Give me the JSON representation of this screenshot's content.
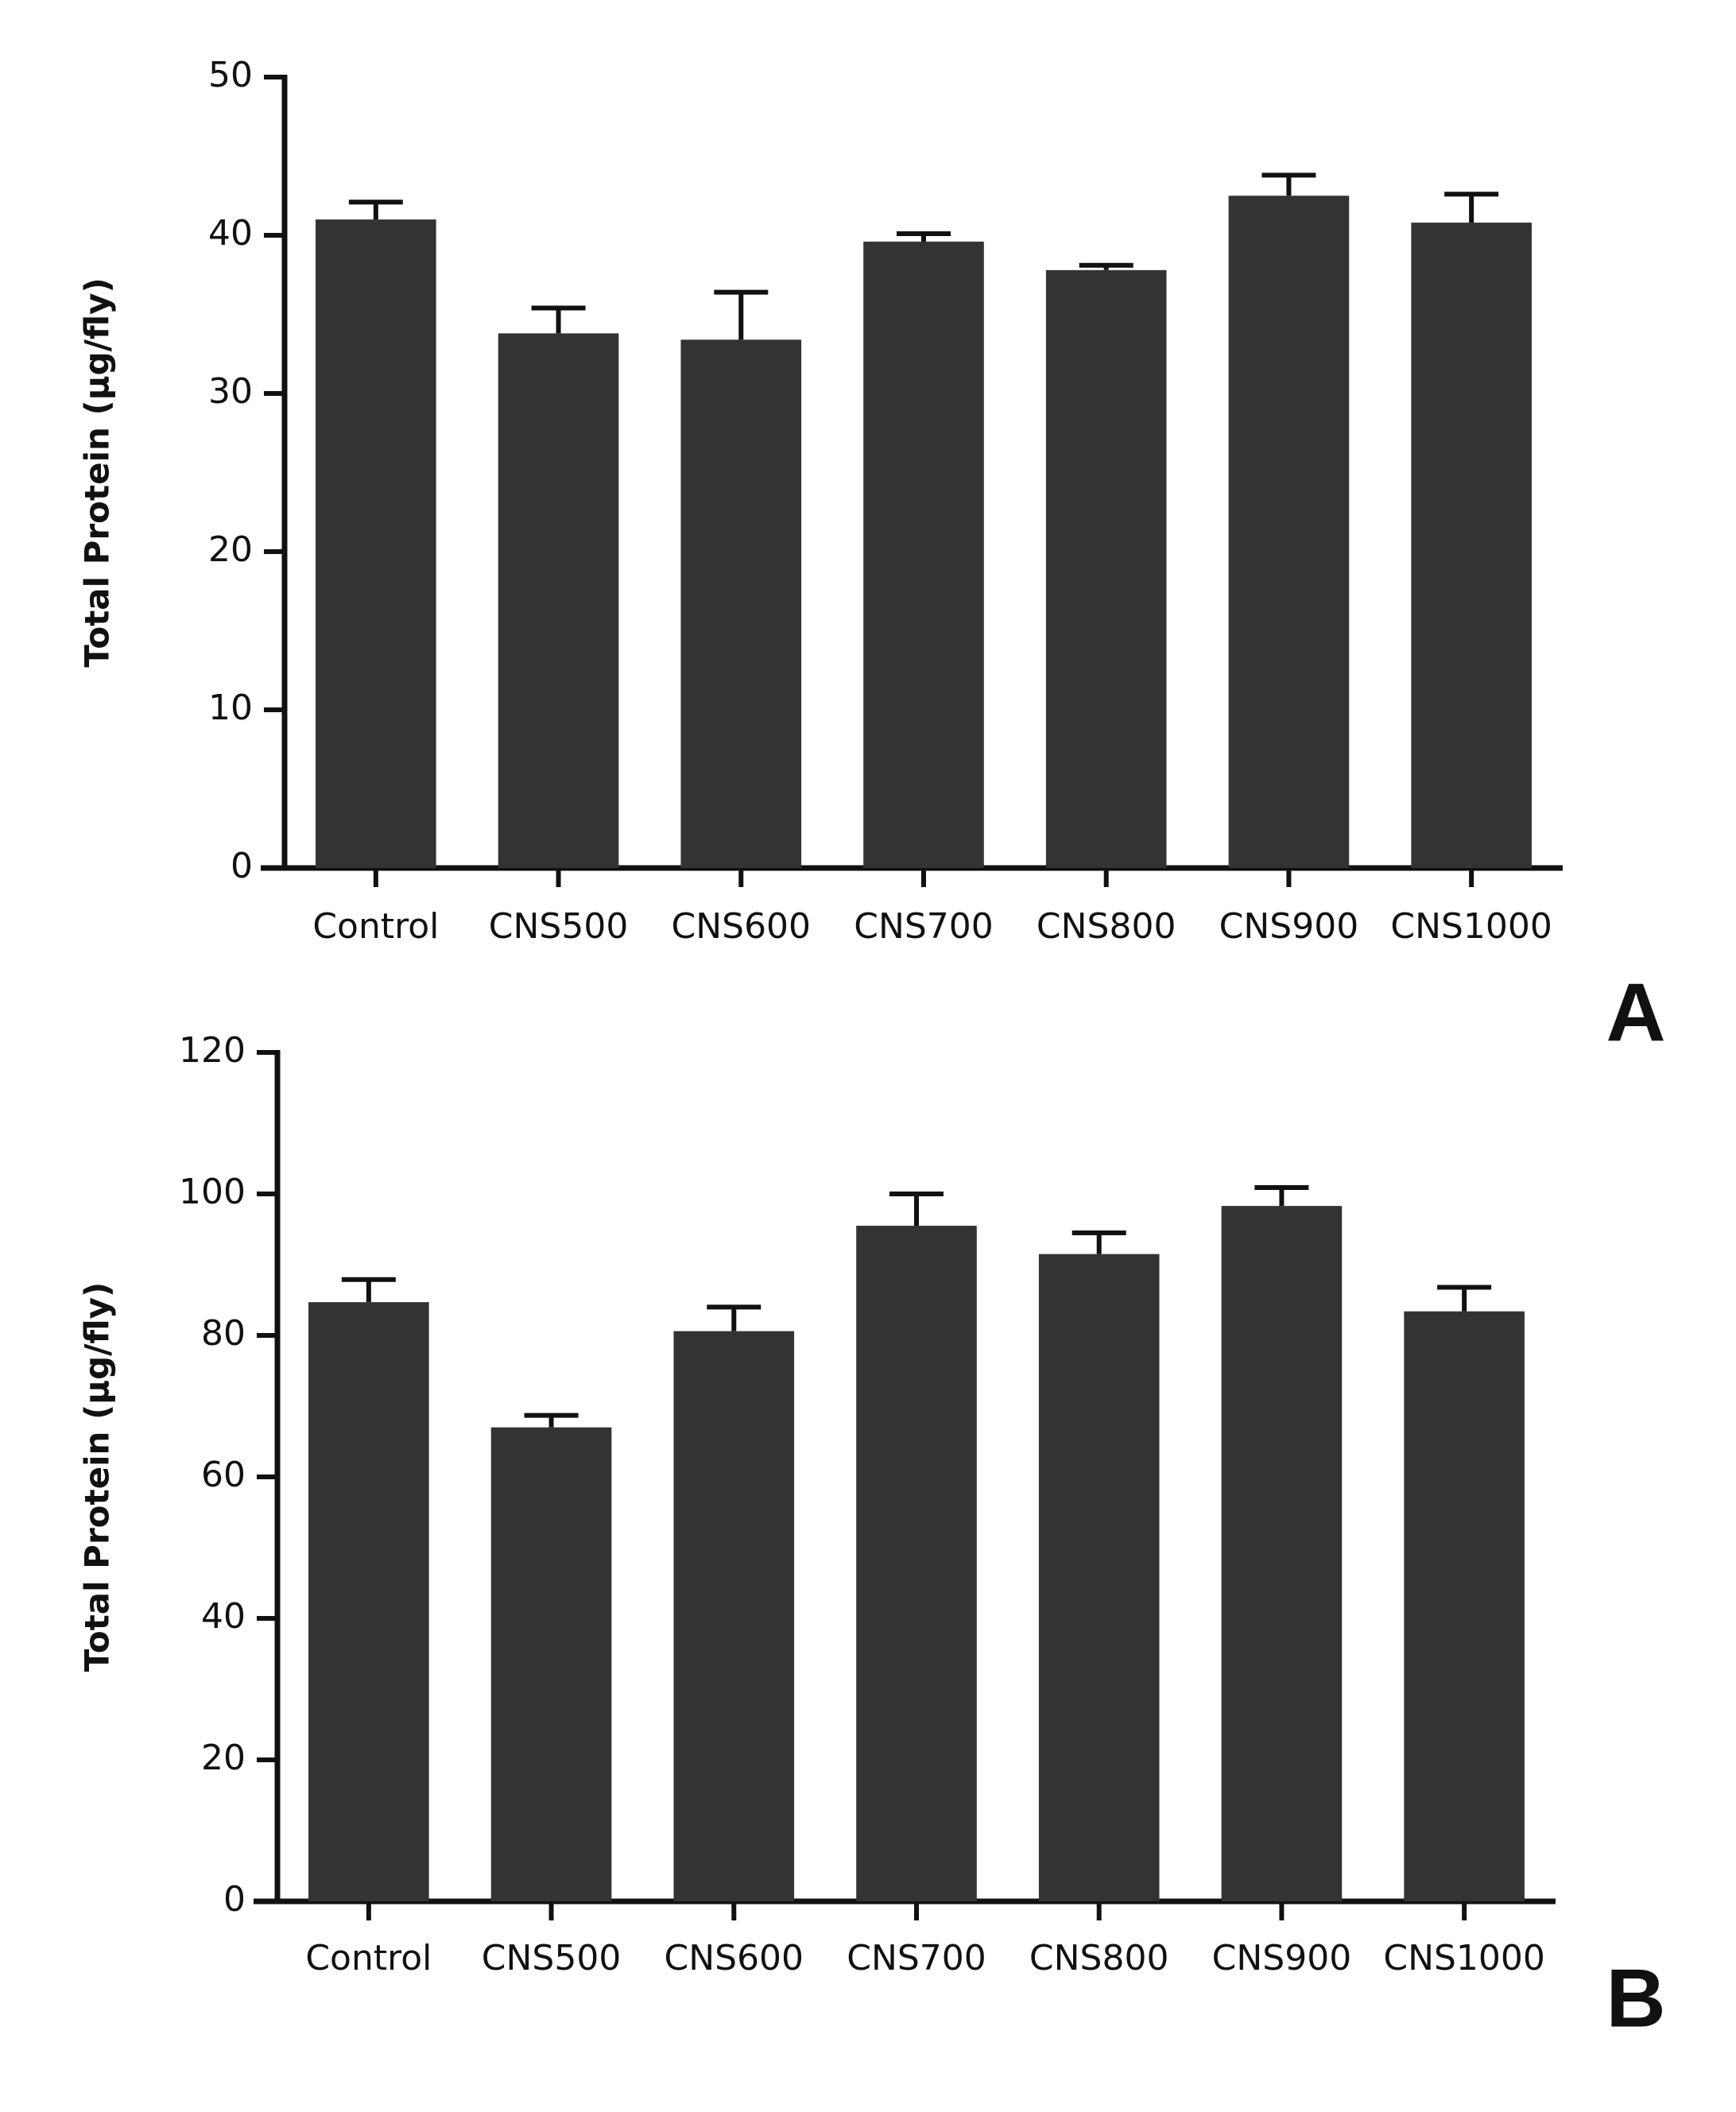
{
  "chart_data": [
    {
      "type": "bar",
      "panel_label": "A",
      "ylabel": "Total Protein (µg/fly)",
      "categories": [
        "Control",
        "CNS500",
        "CNS600",
        "CNS700",
        "CNS800",
        "CNS900",
        "CNS1000"
      ],
      "series": [
        {
          "color": "#333333",
          "values": [
            41.0,
            33.8,
            33.4,
            39.6,
            37.8,
            42.5,
            40.8
          ],
          "errors": [
            1.1,
            1.6,
            3.0,
            0.5,
            0.3,
            1.3,
            1.8
          ]
        }
      ],
      "ylim": [
        0,
        50
      ],
      "yticks": [
        0,
        10,
        20,
        30,
        40,
        50
      ]
    },
    {
      "type": "bar",
      "panel_label": "B",
      "ylabel": "Total Protein (µg/fly)",
      "categories": [
        "Control",
        "CNS500",
        "CNS600",
        "CNS700",
        "CNS800",
        "CNS900",
        "CNS1000"
      ],
      "series": [
        {
          "color": "#333333",
          "values": [
            84.7,
            67.0,
            80.6,
            95.5,
            91.5,
            98.3,
            83.4
          ],
          "errors": [
            3.2,
            1.7,
            3.4,
            4.5,
            3.0,
            2.6,
            3.4
          ]
        }
      ],
      "ylim": [
        0,
        120
      ],
      "yticks": [
        0,
        20,
        40,
        60,
        80,
        100,
        120
      ]
    }
  ]
}
